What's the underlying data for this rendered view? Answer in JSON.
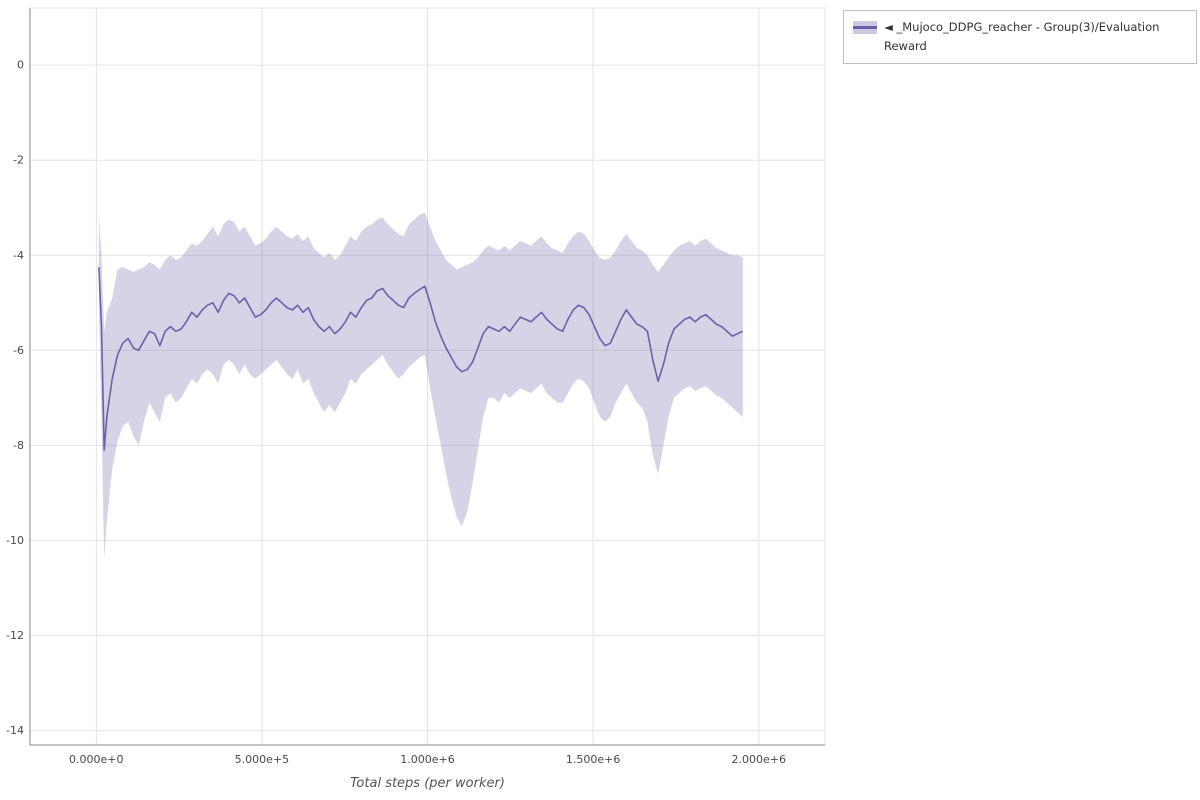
{
  "legend": {
    "label": "◄ _Mujoco_DDPG_reacher - Group(3)/Evaluation Reward",
    "line_color": "#6a61a8",
    "band_color": "#cdc9e5"
  },
  "chart_data": {
    "type": "line",
    "title": "",
    "xlabel": "Total steps (per worker)",
    "ylabel": "",
    "grid": true,
    "legend_position": "top-right-outside",
    "xlim": [
      -200000,
      2200000
    ],
    "ylim": [
      -14.3,
      1.2
    ],
    "x_ticks": [
      {
        "value": 0,
        "label": "0.000e+0"
      },
      {
        "value": 500000,
        "label": "5.000e+5"
      },
      {
        "value": 1000000,
        "label": "1.000e+6"
      },
      {
        "value": 1500000,
        "label": "1.500e+6"
      },
      {
        "value": 2000000,
        "label": "2.000e+6"
      }
    ],
    "y_ticks": [
      {
        "value": 0,
        "label": "0"
      },
      {
        "value": -2,
        "label": "-2"
      },
      {
        "value": -4,
        "label": "-4"
      },
      {
        "value": -6,
        "label": "-6"
      },
      {
        "value": -8,
        "label": "-8"
      },
      {
        "value": -10,
        "label": "-10"
      },
      {
        "value": -12,
        "label": "-12"
      },
      {
        "value": -14,
        "label": "-14"
      }
    ],
    "series": [
      {
        "name": "_Mujoco_DDPG_reacher - Group(3)/Evaluation Reward",
        "color": "#6a61a8",
        "band_fill": "#6a61a8",
        "band_opacity": 0.28,
        "x": [
          8000,
          16000,
          24000,
          32000,
          48000,
          64000,
          80000,
          96000,
          112000,
          128000,
          144000,
          160000,
          176000,
          192000,
          208000,
          224000,
          240000,
          256000,
          272000,
          288000,
          304000,
          320000,
          336000,
          352000,
          368000,
          384000,
          400000,
          416000,
          432000,
          448000,
          464000,
          480000,
          496000,
          512000,
          528000,
          544000,
          560000,
          576000,
          592000,
          608000,
          624000,
          640000,
          656000,
          672000,
          688000,
          704000,
          720000,
          736000,
          752000,
          768000,
          784000,
          800000,
          816000,
          832000,
          848000,
          864000,
          880000,
          896000,
          912000,
          928000,
          944000,
          960000,
          976000,
          992000,
          1008000,
          1024000,
          1040000,
          1056000,
          1072000,
          1088000,
          1104000,
          1120000,
          1136000,
          1152000,
          1168000,
          1184000,
          1200000,
          1216000,
          1232000,
          1248000,
          1264000,
          1280000,
          1296000,
          1312000,
          1328000,
          1344000,
          1360000,
          1376000,
          1392000,
          1408000,
          1424000,
          1440000,
          1456000,
          1472000,
          1488000,
          1504000,
          1520000,
          1536000,
          1552000,
          1568000,
          1584000,
          1600000,
          1616000,
          1632000,
          1648000,
          1664000,
          1680000,
          1696000,
          1712000,
          1728000,
          1744000,
          1760000,
          1776000,
          1792000,
          1808000,
          1824000,
          1840000,
          1856000,
          1872000,
          1888000,
          1904000,
          1920000,
          1936000,
          1952000
        ],
        "mean": [
          -4.25,
          -5.5,
          -8.1,
          -7.4,
          -6.6,
          -6.1,
          -5.85,
          -5.75,
          -5.95,
          -6.0,
          -5.8,
          -5.6,
          -5.65,
          -5.9,
          -5.6,
          -5.5,
          -5.6,
          -5.55,
          -5.4,
          -5.2,
          -5.3,
          -5.15,
          -5.05,
          -5.0,
          -5.2,
          -4.95,
          -4.8,
          -4.85,
          -5.0,
          -4.9,
          -5.1,
          -5.3,
          -5.25,
          -5.15,
          -5.0,
          -4.9,
          -5.0,
          -5.1,
          -5.15,
          -5.05,
          -5.2,
          -5.1,
          -5.35,
          -5.5,
          -5.6,
          -5.5,
          -5.65,
          -5.55,
          -5.4,
          -5.2,
          -5.3,
          -5.1,
          -4.95,
          -4.9,
          -4.75,
          -4.7,
          -4.85,
          -4.95,
          -5.05,
          -5.1,
          -4.9,
          -4.8,
          -4.72,
          -4.65,
          -5.0,
          -5.4,
          -5.7,
          -5.95,
          -6.15,
          -6.35,
          -6.45,
          -6.4,
          -6.25,
          -5.95,
          -5.65,
          -5.5,
          -5.55,
          -5.6,
          -5.5,
          -5.6,
          -5.45,
          -5.3,
          -5.35,
          -5.4,
          -5.3,
          -5.2,
          -5.35,
          -5.45,
          -5.55,
          -5.6,
          -5.35,
          -5.15,
          -5.05,
          -5.1,
          -5.25,
          -5.5,
          -5.75,
          -5.9,
          -5.85,
          -5.6,
          -5.35,
          -5.15,
          -5.3,
          -5.45,
          -5.5,
          -5.6,
          -6.2,
          -6.65,
          -6.3,
          -5.85,
          -5.55,
          -5.45,
          -5.35,
          -5.3,
          -5.4,
          -5.3,
          -5.25,
          -5.35,
          -5.45,
          -5.5,
          -5.6,
          -5.7,
          -5.65,
          -5.6
        ],
        "upper": [
          -3.15,
          -4.0,
          -5.6,
          -5.2,
          -4.9,
          -4.3,
          -4.25,
          -4.3,
          -4.35,
          -4.3,
          -4.25,
          -4.15,
          -4.2,
          -4.3,
          -4.1,
          -4.0,
          -4.1,
          -4.05,
          -3.9,
          -3.75,
          -3.8,
          -3.7,
          -3.55,
          -3.4,
          -3.6,
          -3.35,
          -3.25,
          -3.3,
          -3.5,
          -3.4,
          -3.6,
          -3.8,
          -3.75,
          -3.65,
          -3.5,
          -3.4,
          -3.5,
          -3.6,
          -3.65,
          -3.55,
          -3.7,
          -3.6,
          -3.85,
          -3.95,
          -4.05,
          -3.95,
          -4.1,
          -4.0,
          -3.8,
          -3.6,
          -3.7,
          -3.5,
          -3.4,
          -3.35,
          -3.25,
          -3.2,
          -3.35,
          -3.45,
          -3.55,
          -3.6,
          -3.35,
          -3.25,
          -3.15,
          -3.1,
          -3.4,
          -3.7,
          -3.9,
          -4.1,
          -4.2,
          -4.3,
          -4.25,
          -4.2,
          -4.15,
          -4.05,
          -3.9,
          -3.8,
          -3.85,
          -3.9,
          -3.8,
          -3.9,
          -3.8,
          -3.7,
          -3.75,
          -3.8,
          -3.7,
          -3.6,
          -3.75,
          -3.85,
          -3.9,
          -3.95,
          -3.75,
          -3.6,
          -3.5,
          -3.55,
          -3.7,
          -3.9,
          -4.05,
          -4.1,
          -4.05,
          -3.9,
          -3.7,
          -3.55,
          -3.7,
          -3.85,
          -3.9,
          -4.0,
          -4.2,
          -4.35,
          -4.2,
          -4.05,
          -3.9,
          -3.8,
          -3.75,
          -3.7,
          -3.8,
          -3.7,
          -3.65,
          -3.75,
          -3.85,
          -3.9,
          -3.95,
          -4.0,
          -4.0,
          -4.05
        ],
        "lower": [
          -5.1,
          -7.5,
          -10.4,
          -9.6,
          -8.5,
          -7.9,
          -7.6,
          -7.5,
          -7.8,
          -8.0,
          -7.5,
          -7.1,
          -7.3,
          -7.5,
          -7.0,
          -6.9,
          -7.1,
          -7.0,
          -6.8,
          -6.6,
          -6.7,
          -6.5,
          -6.4,
          -6.5,
          -6.7,
          -6.3,
          -6.2,
          -6.3,
          -6.5,
          -6.3,
          -6.5,
          -6.6,
          -6.5,
          -6.4,
          -6.3,
          -6.2,
          -6.35,
          -6.5,
          -6.6,
          -6.4,
          -6.7,
          -6.6,
          -6.9,
          -7.1,
          -7.3,
          -7.15,
          -7.3,
          -7.1,
          -6.9,
          -6.6,
          -6.7,
          -6.5,
          -6.4,
          -6.3,
          -6.2,
          -6.1,
          -6.3,
          -6.45,
          -6.6,
          -6.5,
          -6.35,
          -6.25,
          -6.15,
          -6.1,
          -6.8,
          -7.4,
          -8.0,
          -8.6,
          -9.1,
          -9.5,
          -9.7,
          -9.4,
          -8.8,
          -8.1,
          -7.4,
          -7.0,
          -7.0,
          -7.1,
          -6.9,
          -7.0,
          -6.9,
          -6.8,
          -6.85,
          -6.9,
          -6.8,
          -6.7,
          -6.9,
          -7.0,
          -7.1,
          -7.1,
          -6.9,
          -6.7,
          -6.6,
          -6.65,
          -6.8,
          -7.1,
          -7.4,
          -7.5,
          -7.4,
          -7.1,
          -6.9,
          -6.7,
          -6.9,
          -7.1,
          -7.2,
          -7.5,
          -8.2,
          -8.6,
          -8.0,
          -7.4,
          -7.0,
          -6.9,
          -6.8,
          -6.75,
          -6.85,
          -6.8,
          -6.75,
          -6.85,
          -6.95,
          -7.0,
          -7.1,
          -7.2,
          -7.3,
          -7.4
        ]
      }
    ],
    "colors": {
      "grid": "#e3e3e3",
      "axis": "#8a8a8a",
      "tick_label": "#4a4a4a"
    }
  }
}
